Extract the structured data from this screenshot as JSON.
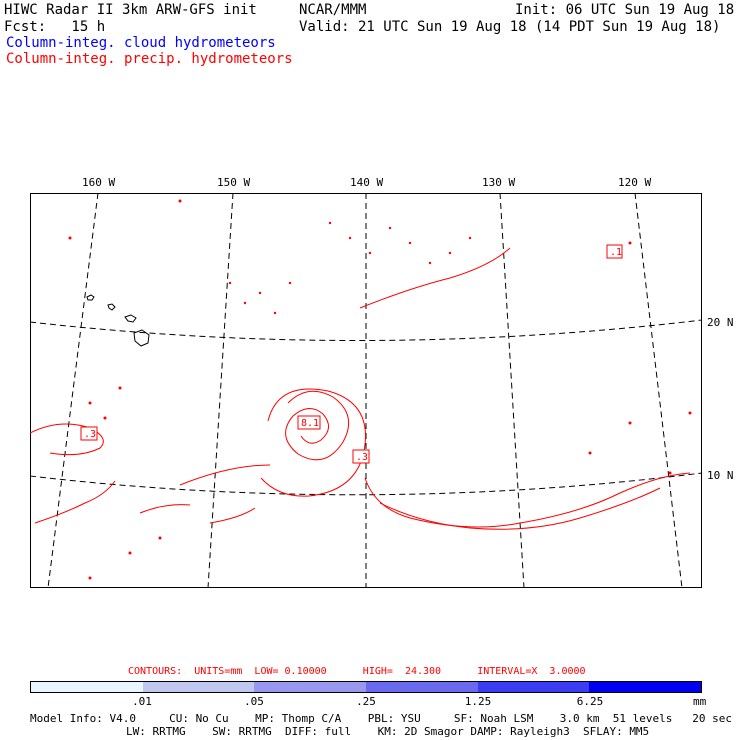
{
  "header": {
    "title": "HIWC Radar II 3km ARW-GFS init",
    "org": "NCAR/MMM",
    "init": "Init: 06 UTC Sun 19 Aug 18",
    "fcst": "Fcst:   15 h",
    "valid": "Valid: 21 UTC Sun 19 Aug 18 (14 PDT Sun 19 Aug 18)",
    "legend_cloud": "Column-integ. cloud hydrometeors",
    "legend_precip": "Column-integ. precip. hydrometeors"
  },
  "map": {
    "lon_labels": [
      "160 W",
      "150 W",
      "140 W",
      "130 W",
      "120 W"
    ],
    "lat_labels": [
      "20 N",
      "10 N"
    ],
    "max_labels": [
      "8.1",
      ".3",
      ".3",
      ".1"
    ],
    "colors": {
      "precip": "#ff0000",
      "land": "#000000",
      "grid": "#000000"
    }
  },
  "footer": {
    "contours": "CONTOURS:  UNITS=mm  LOW= 0.10000      HIGH=  24.300      INTERVAL=X  3.0000",
    "colorbar_ticks": [
      ".01",
      ".05",
      ".25",
      "1.25",
      "6.25"
    ],
    "colorbar_unit": "mm",
    "colorbar_colors": [
      "#ffffff",
      "#e8f6ff",
      "#c0c8f0",
      "#9898ee",
      "#6a6af0",
      "#3c3cf4",
      "#0000f0"
    ],
    "info_line1": "Model Info: V4.0     CU: No Cu    MP: Thomp C/A    PBL: YSU     SF: Noah LSM    3.0 km  51 levels   20 sec",
    "info_line2": "LW: RRTMG    SW: RRTMG  DIFF: full    KM: 2D Smagor DAMP: Rayleigh3  SFLAY: MM5"
  }
}
